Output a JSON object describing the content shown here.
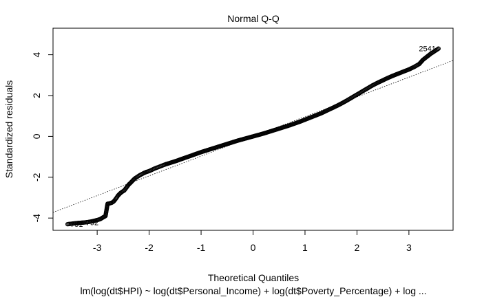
{
  "chart_data": {
    "type": "scatter",
    "title": "Normal Q-Q",
    "xlabel": "Theoretical Quantiles",
    "ylabel": "Standardized residuals",
    "subtitle": "lm(log(dt$HPI) ~ log(dt$Personal_Income) + log(dt$Poverty_Percentage) + log ...",
    "xlim": [
      -3.85,
      3.85
    ],
    "ylim": [
      -4.6,
      5.3
    ],
    "xticks": [
      -3,
      -2,
      -1,
      0,
      1,
      2,
      3
    ],
    "yticks": [
      -4,
      -2,
      0,
      2,
      4
    ],
    "grid": false,
    "reference_line": {
      "x": [
        -3.0,
        3.0
      ],
      "y": [
        -2.9,
        2.9
      ],
      "style": "dotted"
    },
    "labeled_points": [
      {
        "label": "2541",
        "x": 3.57,
        "y": 4.3
      },
      {
        "label": "791",
        "x": -3.57,
        "y": -4.3
      },
      {
        "label": "792",
        "x": -3.27,
        "y": -4.22
      }
    ],
    "points": {
      "x": [
        -3.57,
        -3.41,
        -3.27,
        -3.19,
        -3.12,
        -3.05,
        -2.99,
        -2.94,
        -2.89,
        -2.84,
        -2.8,
        -2.76,
        -2.72,
        -2.7,
        -2.68,
        -2.66,
        -2.64,
        -2.62,
        -2.6,
        -2.57,
        -2.54,
        -2.51,
        -2.48,
        -2.45,
        -2.42,
        -2.39,
        -2.36,
        -2.33,
        -2.3,
        -2.27,
        -2.24,
        -2.21,
        -2.18,
        -2.15,
        -2.12,
        -2.09,
        -2.05,
        -2.0,
        -1.95,
        -1.9,
        -1.85,
        -1.8,
        -1.75,
        -1.7,
        -1.6,
        -1.5,
        -1.4,
        -1.3,
        -1.2,
        -1.1,
        -1.0,
        -0.9,
        -0.8,
        -0.7,
        -0.6,
        -0.5,
        -0.4,
        -0.3,
        -0.2,
        -0.1,
        0.0,
        0.1,
        0.2,
        0.3,
        0.4,
        0.5,
        0.6,
        0.7,
        0.8,
        0.9,
        1.0,
        1.1,
        1.2,
        1.3,
        1.4,
        1.5,
        1.6,
        1.7,
        1.8,
        1.9,
        2.0,
        2.1,
        2.2,
        2.3,
        2.4,
        2.5,
        2.6,
        2.7,
        2.8,
        2.9,
        3.0,
        3.1,
        3.2,
        3.27,
        3.42,
        3.57
      ],
      "y": [
        -4.3,
        -4.25,
        -4.22,
        -4.2,
        -4.17,
        -4.13,
        -4.09,
        -4.05,
        -3.97,
        -3.9,
        -3.3,
        -3.28,
        -3.25,
        -3.22,
        -3.18,
        -3.12,
        -3.05,
        -2.98,
        -2.9,
        -2.82,
        -2.75,
        -2.7,
        -2.65,
        -2.55,
        -2.45,
        -2.35,
        -2.28,
        -2.2,
        -2.12,
        -2.05,
        -2.0,
        -1.95,
        -1.9,
        -1.86,
        -1.82,
        -1.78,
        -1.74,
        -1.7,
        -1.64,
        -1.58,
        -1.53,
        -1.48,
        -1.43,
        -1.38,
        -1.3,
        -1.22,
        -1.13,
        -1.04,
        -0.95,
        -0.86,
        -0.77,
        -0.69,
        -0.61,
        -0.53,
        -0.45,
        -0.37,
        -0.29,
        -0.21,
        -0.14,
        -0.07,
        0.0,
        0.07,
        0.14,
        0.22,
        0.3,
        0.38,
        0.46,
        0.54,
        0.63,
        0.72,
        0.82,
        0.92,
        1.02,
        1.12,
        1.24,
        1.36,
        1.48,
        1.61,
        1.75,
        1.9,
        2.05,
        2.2,
        2.35,
        2.5,
        2.63,
        2.75,
        2.87,
        2.98,
        3.08,
        3.18,
        3.28,
        3.4,
        3.55,
        3.75,
        4.05,
        4.3
      ]
    }
  }
}
